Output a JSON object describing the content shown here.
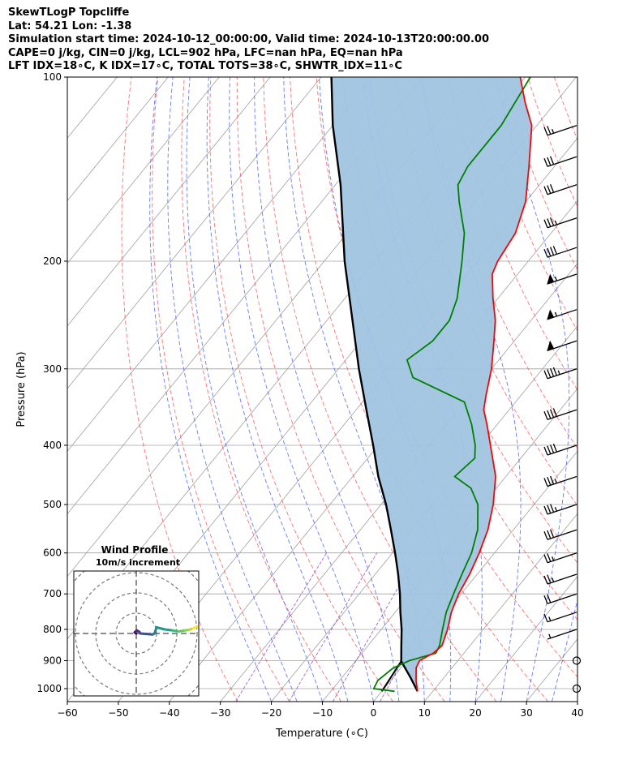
{
  "header": {
    "lines": [
      "SkewTLogP Topcliffe",
      "Lat: 54.21   Lon: -1.38",
      "Simulation start time: 2024-10-12_00:00:00, Valid time: 2024-10-13T20:00:00.00",
      "CAPE=0 j/kg, CIN=0 j/kg, LCL=902 hPa, LFC=nan hPa, EQ=nan hPa",
      "LFT IDX=18∘C, K IDX=17∘C, TOTAL TOTS=38∘C, SHWTR_IDX=11∘C"
    ]
  },
  "chart_data": {
    "type": "skewt-logp",
    "xlabel": "Temperature (∘C)",
    "ylabel": "Pressure (hPa)",
    "xlim": [
      -60,
      40
    ],
    "ylim": [
      1050,
      100
    ],
    "x_ticks": [
      -60,
      -50,
      -40,
      -30,
      -20,
      -10,
      0,
      10,
      20,
      30,
      40
    ],
    "y_ticks": [
      100,
      200,
      300,
      400,
      500,
      600,
      700,
      800,
      900,
      1000
    ],
    "grid": true,
    "colors": {
      "temperature": "#ff0000",
      "dewpoint": "#008000",
      "parcel": "#000000",
      "shade": "#a0c4e0",
      "dry_adiabats": "#ff4040",
      "moist_adiabats": "#3050ff",
      "mixing_ratio": "#9040c0",
      "isotherms": "#a0a0a0"
    },
    "temperature": [
      {
        "p": 1010,
        "t": 7
      },
      {
        "p": 1000,
        "t": 6.5
      },
      {
        "p": 970,
        "t": 5
      },
      {
        "p": 925,
        "t": 3
      },
      {
        "p": 900,
        "t": 2.5
      },
      {
        "p": 875,
        "t": 4
      },
      {
        "p": 850,
        "t": 4.5
      },
      {
        "p": 800,
        "t": 3
      },
      {
        "p": 750,
        "t": 1
      },
      {
        "p": 700,
        "t": -0.5
      },
      {
        "p": 650,
        "t": -1.5
      },
      {
        "p": 600,
        "t": -3
      },
      {
        "p": 550,
        "t": -5
      },
      {
        "p": 500,
        "t": -8
      },
      {
        "p": 450,
        "t": -12
      },
      {
        "p": 400,
        "t": -18
      },
      {
        "p": 370,
        "t": -22
      },
      {
        "p": 350,
        "t": -25
      },
      {
        "p": 330,
        "t": -27
      },
      {
        "p": 300,
        "t": -30
      },
      {
        "p": 270,
        "t": -34
      },
      {
        "p": 250,
        "t": -37
      },
      {
        "p": 230,
        "t": -41
      },
      {
        "p": 210,
        "t": -45
      },
      {
        "p": 200,
        "t": -46
      },
      {
        "p": 180,
        "t": -47
      },
      {
        "p": 160,
        "t": -50
      },
      {
        "p": 140,
        "t": -55
      },
      {
        "p": 120,
        "t": -61
      },
      {
        "p": 110,
        "t": -66
      },
      {
        "p": 100,
        "t": -71
      }
    ],
    "dewpoint": [
      {
        "p": 1010,
        "t": 2.5
      },
      {
        "p": 1000,
        "t": -2
      },
      {
        "p": 970,
        "t": -2.5
      },
      {
        "p": 925,
        "t": -1.5
      },
      {
        "p": 900,
        "t": 0.5
      },
      {
        "p": 875,
        "t": 4.5
      },
      {
        "p": 850,
        "t": 4
      },
      {
        "p": 800,
        "t": 2
      },
      {
        "p": 750,
        "t": 0
      },
      {
        "p": 700,
        "t": -1.5
      },
      {
        "p": 650,
        "t": -3
      },
      {
        "p": 600,
        "t": -4.5
      },
      {
        "p": 550,
        "t": -7
      },
      {
        "p": 500,
        "t": -11
      },
      {
        "p": 470,
        "t": -15
      },
      {
        "p": 450,
        "t": -20
      },
      {
        "p": 420,
        "t": -19
      },
      {
        "p": 400,
        "t": -21
      },
      {
        "p": 370,
        "t": -25
      },
      {
        "p": 340,
        "t": -30
      },
      {
        "p": 310,
        "t": -44
      },
      {
        "p": 290,
        "t": -48
      },
      {
        "p": 270,
        "t": -46
      },
      {
        "p": 250,
        "t": -46
      },
      {
        "p": 230,
        "t": -48
      },
      {
        "p": 200,
        "t": -53
      },
      {
        "p": 180,
        "t": -57
      },
      {
        "p": 160,
        "t": -63
      },
      {
        "p": 150,
        "t": -66
      },
      {
        "p": 140,
        "t": -67
      },
      {
        "p": 120,
        "t": -67
      },
      {
        "p": 100,
        "t": -69
      }
    ],
    "parcel": [
      {
        "p": 1010,
        "t": 7
      },
      {
        "p": 960,
        "t": 3.5
      },
      {
        "p": 902,
        "t": -1
      },
      {
        "p": 850,
        "t": -3.5
      },
      {
        "p": 800,
        "t": -6
      },
      {
        "p": 750,
        "t": -9
      },
      {
        "p": 700,
        "t": -12
      },
      {
        "p": 650,
        "t": -15.5
      },
      {
        "p": 600,
        "t": -19.5
      },
      {
        "p": 550,
        "t": -24
      },
      {
        "p": 500,
        "t": -29
      },
      {
        "p": 450,
        "t": -35
      },
      {
        "p": 400,
        "t": -41
      },
      {
        "p": 350,
        "t": -48
      },
      {
        "p": 300,
        "t": -56
      },
      {
        "p": 250,
        "t": -65
      },
      {
        "p": 200,
        "t": -76
      },
      {
        "p": 150,
        "t": -89
      },
      {
        "p": 120,
        "t": -100
      },
      {
        "p": 100,
        "t": -108
      }
    ],
    "parcel_low": [
      {
        "p": 1010,
        "t": 0
      },
      {
        "p": 902,
        "t": -1
      }
    ],
    "wind_barbs": [
      {
        "p": 1000,
        "speed_kt": 0
      },
      {
        "p": 900,
        "speed_kt": 0
      },
      {
        "p": 800,
        "speed_kt": 5
      },
      {
        "p": 750,
        "speed_kt": 15
      },
      {
        "p": 700,
        "speed_kt": 20
      },
      {
        "p": 650,
        "speed_kt": 25
      },
      {
        "p": 600,
        "speed_kt": 25
      },
      {
        "p": 550,
        "speed_kt": 30
      },
      {
        "p": 500,
        "speed_kt": 35
      },
      {
        "p": 450,
        "speed_kt": 35
      },
      {
        "p": 400,
        "speed_kt": 40
      },
      {
        "p": 350,
        "speed_kt": 40
      },
      {
        "p": 300,
        "speed_kt": 45
      },
      {
        "p": 270,
        "speed_kt": 50
      },
      {
        "p": 240,
        "speed_kt": 55
      },
      {
        "p": 210,
        "speed_kt": 55
      },
      {
        "p": 190,
        "speed_kt": 40
      },
      {
        "p": 170,
        "speed_kt": 35
      },
      {
        "p": 150,
        "speed_kt": 30
      },
      {
        "p": 135,
        "speed_kt": 30
      },
      {
        "p": 120,
        "speed_kt": 25
      }
    ],
    "inset": {
      "title": "Wind Profile",
      "subtitle": "10m/s increment",
      "rings_ms": [
        10,
        20,
        30,
        40
      ],
      "hodograph": [
        {
          "u": 0,
          "v": 0
        },
        {
          "u": -0.8,
          "v": 0.5
        },
        {
          "u": 0.2,
          "v": 1.5
        },
        {
          "u": 1.5,
          "v": 0.8
        },
        {
          "u": 2,
          "v": 0
        },
        {
          "u": 8,
          "v": -0.5
        },
        {
          "u": 9,
          "v": 0
        },
        {
          "u": 10,
          "v": 3
        },
        {
          "u": 14,
          "v": 2
        },
        {
          "u": 18,
          "v": 1.5
        },
        {
          "u": 21,
          "v": 1
        },
        {
          "u": 24,
          "v": 1.5
        },
        {
          "u": 26,
          "v": 1.8
        },
        {
          "u": 28,
          "v": 2.5
        },
        {
          "u": 30,
          "v": 3.5
        }
      ]
    }
  }
}
